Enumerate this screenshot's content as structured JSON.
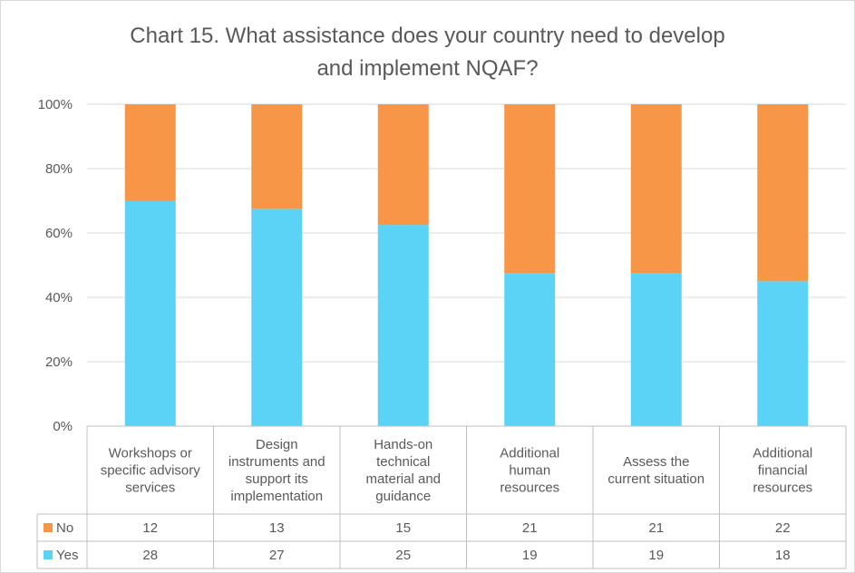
{
  "chart_data": {
    "type": "bar",
    "stacked": true,
    "percent_stacked": true,
    "title_lines": [
      "Chart 15. What assistance does your country need to develop",
      "and implement NQAF?"
    ],
    "categories": [
      [
        "Workshops or",
        "specific advisory",
        "services"
      ],
      [
        "Design",
        "instruments and",
        "support its",
        "implementation"
      ],
      [
        "Hands-on",
        "technical",
        "material and",
        "guidance"
      ],
      [
        "Additional",
        "human",
        "resources"
      ],
      [
        "Assess the",
        "current situation"
      ],
      [
        "Additional",
        "financial",
        "resources"
      ]
    ],
    "series": [
      {
        "name": "Yes",
        "color": "#5bd3f7",
        "values": [
          28,
          27,
          25,
          19,
          19,
          18
        ]
      },
      {
        "name": "No",
        "color": "#f79646",
        "values": [
          12,
          13,
          15,
          21,
          21,
          22
        ]
      }
    ],
    "table_order": [
      "No",
      "Yes"
    ],
    "y_ticks": [
      "0%",
      "20%",
      "40%",
      "60%",
      "80%",
      "100%"
    ],
    "ylim": [
      0,
      100
    ],
    "grid": true,
    "legend": "data-table"
  }
}
